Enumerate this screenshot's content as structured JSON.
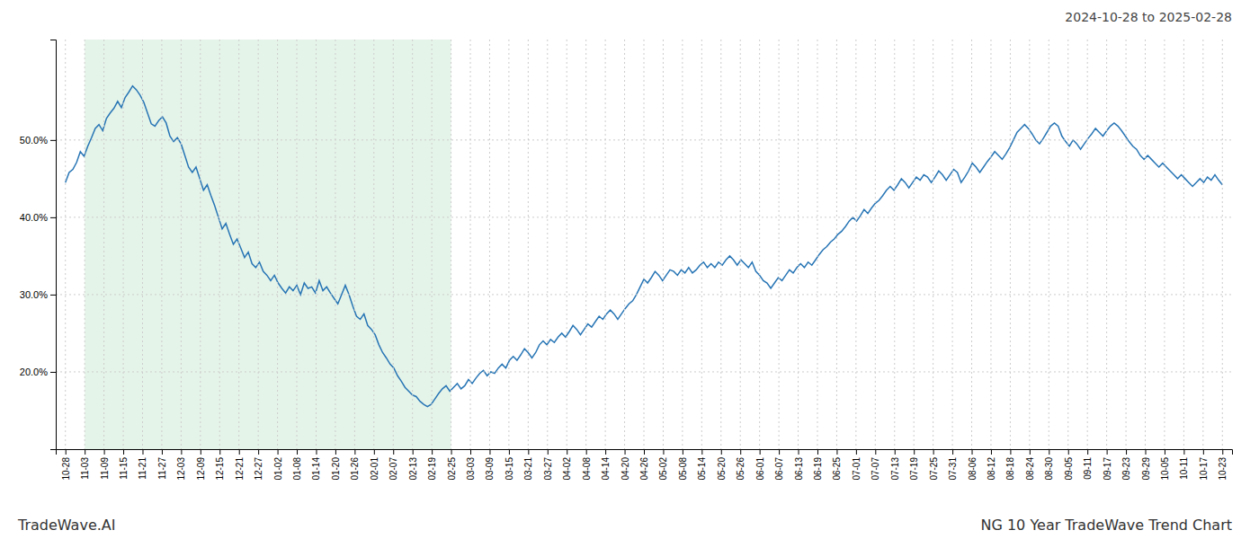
{
  "chart_data": {
    "type": "line",
    "title": "2024-10-28 to 2025-02-28",
    "annotations": [
      "TradeWave.AI",
      "NG 10 Year TradeWave Trend Chart"
    ],
    "color": "#2775b5",
    "grid": true,
    "shade": {
      "range": [
        1,
        20
      ],
      "color": "#d4edda"
    },
    "xlim": [
      -0.5,
      60.5
    ],
    "xticks": [
      {
        "value": 0,
        "label": "10-28"
      },
      {
        "value": 1,
        "label": "11-03"
      },
      {
        "value": 2,
        "label": "11-09"
      },
      {
        "value": 3,
        "label": "11-15"
      },
      {
        "value": 4,
        "label": "11-21"
      },
      {
        "value": 5,
        "label": "11-27"
      },
      {
        "value": 6,
        "label": "12-03"
      },
      {
        "value": 7,
        "label": "12-09"
      },
      {
        "value": 8,
        "label": "12-15"
      },
      {
        "value": 9,
        "label": "12-21"
      },
      {
        "value": 10,
        "label": "12-27"
      },
      {
        "value": 11,
        "label": "01-02"
      },
      {
        "value": 12,
        "label": "01-08"
      },
      {
        "value": 13,
        "label": "01-14"
      },
      {
        "value": 14,
        "label": "01-20"
      },
      {
        "value": 15,
        "label": "01-26"
      },
      {
        "value": 16,
        "label": "02-01"
      },
      {
        "value": 17,
        "label": "02-07"
      },
      {
        "value": 18,
        "label": "02-13"
      },
      {
        "value": 19,
        "label": "02-19"
      },
      {
        "value": 20,
        "label": "02-25"
      },
      {
        "value": 21,
        "label": "03-03"
      },
      {
        "value": 22,
        "label": "03-09"
      },
      {
        "value": 23,
        "label": "03-15"
      },
      {
        "value": 24,
        "label": "03-21"
      },
      {
        "value": 25,
        "label": "03-27"
      },
      {
        "value": 26,
        "label": "04-02"
      },
      {
        "value": 27,
        "label": "04-08"
      },
      {
        "value": 28,
        "label": "04-14"
      },
      {
        "value": 29,
        "label": "04-20"
      },
      {
        "value": 30,
        "label": "04-26"
      },
      {
        "value": 31,
        "label": "05-02"
      },
      {
        "value": 32,
        "label": "05-08"
      },
      {
        "value": 33,
        "label": "05-14"
      },
      {
        "value": 34,
        "label": "05-20"
      },
      {
        "value": 35,
        "label": "05-26"
      },
      {
        "value": 36,
        "label": "06-01"
      },
      {
        "value": 37,
        "label": "06-07"
      },
      {
        "value": 38,
        "label": "06-13"
      },
      {
        "value": 39,
        "label": "06-19"
      },
      {
        "value": 40,
        "label": "06-25"
      },
      {
        "value": 41,
        "label": "07-01"
      },
      {
        "value": 42,
        "label": "07-07"
      },
      {
        "value": 43,
        "label": "07-13"
      },
      {
        "value": 44,
        "label": "07-19"
      },
      {
        "value": 45,
        "label": "07-25"
      },
      {
        "value": 46,
        "label": "07-31"
      },
      {
        "value": 47,
        "label": "08-06"
      },
      {
        "value": 48,
        "label": "08-12"
      },
      {
        "value": 49,
        "label": "08-18"
      },
      {
        "value": 50,
        "label": "08-24"
      },
      {
        "value": 51,
        "label": "08-30"
      },
      {
        "value": 52,
        "label": "09-05"
      },
      {
        "value": 53,
        "label": "09-11"
      },
      {
        "value": 54,
        "label": "09-17"
      },
      {
        "value": 55,
        "label": "09-23"
      },
      {
        "value": 56,
        "label": "09-29"
      },
      {
        "value": 57,
        "label": "10-05"
      },
      {
        "value": 58,
        "label": "10-11"
      },
      {
        "value": 59,
        "label": "10-17"
      },
      {
        "value": 60,
        "label": "10-23"
      }
    ],
    "ylim": [
      10,
      63
    ],
    "yticks": [
      {
        "value": 20.0,
        "label": "20.0%"
      },
      {
        "value": 30.0,
        "label": "30.0%"
      },
      {
        "value": 40.0,
        "label": "40.0%"
      },
      {
        "value": 50.0,
        "label": "50.0%"
      }
    ],
    "values": [
      44.5,
      45.8,
      46.2,
      47.1,
      48.5,
      47.9,
      49.2,
      50.3,
      51.5,
      52.0,
      51.2,
      52.8,
      53.5,
      54.1,
      55.0,
      54.2,
      55.5,
      56.2,
      57.0,
      56.5,
      55.8,
      54.9,
      53.5,
      52.1,
      51.8,
      52.5,
      53.0,
      52.2,
      50.5,
      49.8,
      50.3,
      49.5,
      48.0,
      46.5,
      45.8,
      46.5,
      45.0,
      43.5,
      44.2,
      42.8,
      41.5,
      40.0,
      38.5,
      39.2,
      37.8,
      36.5,
      37.2,
      36.0,
      34.8,
      35.5,
      34.0,
      33.5,
      34.2,
      33.0,
      32.5,
      31.8,
      32.5,
      31.5,
      30.8,
      30.2,
      31.0,
      30.5,
      31.2,
      30.0,
      31.5,
      30.8,
      31.0,
      30.2,
      31.8,
      30.5,
      31.0,
      30.2,
      29.5,
      28.8,
      30.0,
      31.2,
      30.0,
      28.5,
      27.2,
      26.8,
      27.5,
      26.0,
      25.5,
      24.8,
      23.5,
      22.5,
      21.8,
      21.0,
      20.5,
      19.5,
      18.8,
      18.0,
      17.5,
      17.0,
      16.8,
      16.2,
      15.8,
      15.5,
      15.8,
      16.5,
      17.2,
      17.8,
      18.2,
      17.5,
      18.0,
      18.5,
      17.8,
      18.2,
      19.0,
      18.5,
      19.2,
      19.8,
      20.2,
      19.5,
      20.0,
      19.8,
      20.5,
      21.0,
      20.5,
      21.5,
      22.0,
      21.5,
      22.2,
      23.0,
      22.5,
      21.8,
      22.5,
      23.5,
      24.0,
      23.5,
      24.2,
      23.8,
      24.5,
      25.0,
      24.5,
      25.2,
      26.0,
      25.5,
      24.8,
      25.5,
      26.2,
      25.8,
      26.5,
      27.2,
      26.8,
      27.5,
      28.0,
      27.5,
      26.8,
      27.5,
      28.2,
      28.8,
      29.2,
      30.0,
      31.0,
      32.0,
      31.5,
      32.2,
      33.0,
      32.5,
      31.8,
      32.5,
      33.2,
      33.0,
      32.5,
      33.2,
      32.8,
      33.5,
      32.8,
      33.2,
      33.8,
      34.2,
      33.5,
      34.0,
      33.5,
      34.2,
      33.8,
      34.5,
      35.0,
      34.5,
      33.8,
      34.5,
      34.0,
      33.5,
      34.2,
      33.0,
      32.5,
      31.8,
      31.5,
      30.8,
      31.5,
      32.2,
      31.8,
      32.5,
      33.2,
      32.8,
      33.5,
      34.0,
      33.5,
      34.2,
      33.8,
      34.5,
      35.2,
      35.8,
      36.2,
      36.8,
      37.2,
      37.8,
      38.2,
      38.8,
      39.5,
      40.0,
      39.5,
      40.2,
      41.0,
      40.5,
      41.2,
      41.8,
      42.2,
      42.8,
      43.5,
      44.0,
      43.5,
      44.2,
      45.0,
      44.5,
      43.8,
      44.5,
      45.2,
      44.8,
      45.5,
      45.2,
      44.5,
      45.2,
      46.0,
      45.5,
      44.8,
      45.5,
      46.2,
      45.8,
      44.5,
      45.2,
      46.0,
      47.0,
      46.5,
      45.8,
      46.5,
      47.2,
      47.8,
      48.5,
      48.0,
      47.5,
      48.2,
      49.0,
      50.0,
      51.0,
      51.5,
      52.0,
      51.5,
      50.8,
      50.0,
      49.5,
      50.2,
      51.0,
      51.8,
      52.2,
      51.8,
      50.5,
      49.8,
      49.2,
      50.0,
      49.5,
      48.8,
      49.5,
      50.2,
      50.8,
      51.5,
      51.0,
      50.5,
      51.2,
      51.8,
      52.2,
      51.8,
      51.2,
      50.5,
      49.8,
      49.2,
      48.8,
      48.0,
      47.5,
      48.0,
      47.5,
      47.0,
      46.5,
      47.0,
      46.5,
      46.0,
      45.5,
      45.0,
      45.5,
      45.0,
      44.5,
      44.0,
      44.5,
      45.0,
      44.5,
      45.2,
      44.8,
      45.5,
      44.8,
      44.2
    ]
  }
}
